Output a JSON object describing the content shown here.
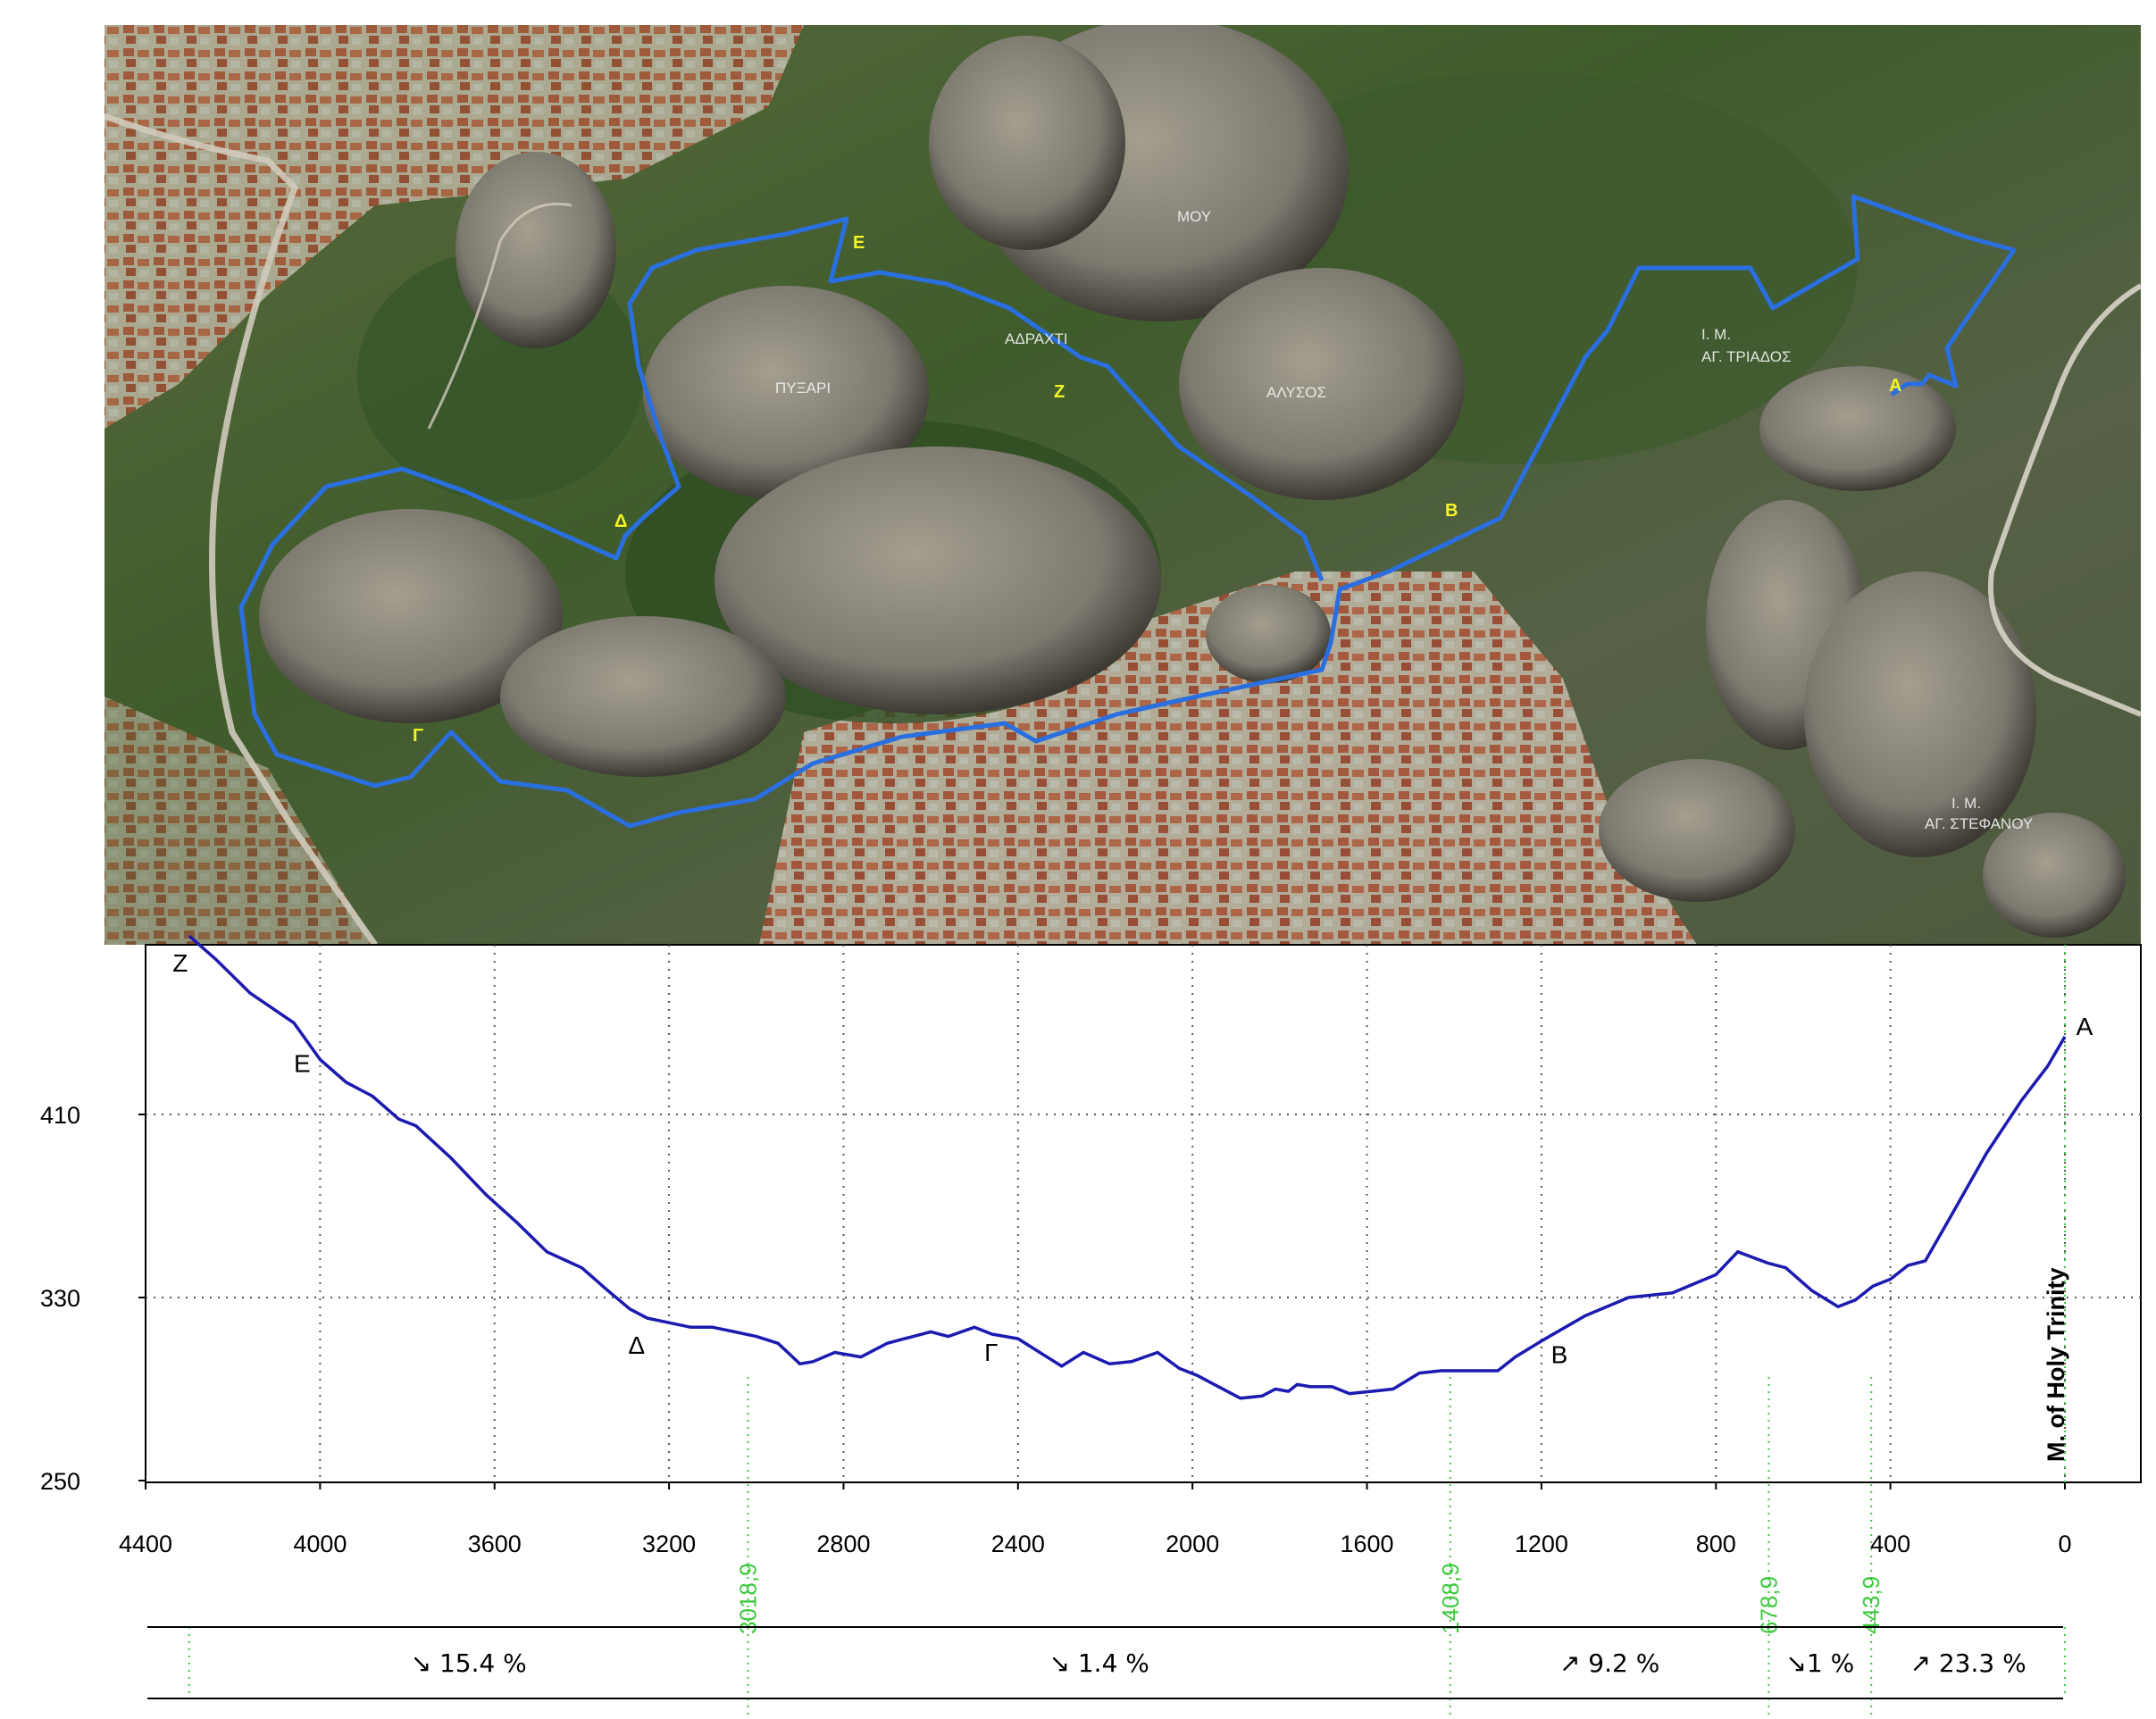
{
  "map": {
    "labels": [
      "ΠΥΞΑΡΙ",
      "ΑΔΡΑΧΤΙ",
      "ΜΟΥ",
      "ΑΛΥΣΟΣ",
      "Ι. Μ.",
      "ΑΓ. ΤΡΙΑΔΟΣ",
      "Ι. Μ.",
      "ΑΓ. ΣΤΕΦΑΝΟΥ"
    ],
    "route_points": [
      "Ε",
      "Ζ",
      "Δ",
      "Β",
      "Γ",
      "Α"
    ]
  },
  "chart_data": {
    "type": "line",
    "title": "",
    "xlabel": "",
    "ylabel": "",
    "x_reversed": true,
    "xlim": [
      0,
      4400
    ],
    "ylim": [
      250,
      490
    ],
    "x_ticks": [
      4400,
      4000,
      3600,
      3200,
      2800,
      2400,
      2000,
      1600,
      1200,
      800,
      400,
      0
    ],
    "y_ticks": [
      250,
      330,
      410
    ],
    "grid": true,
    "series": [
      {
        "color": "#1c1ab0",
        "x": [
          4300,
          4240,
          4160,
          4060,
          4000,
          3940,
          3880,
          3820,
          3780,
          3700,
          3620,
          3550,
          3480,
          3400,
          3340,
          3290,
          3250,
          3200,
          3150,
          3100,
          3050,
          3000,
          2950,
          2900,
          2870,
          2820,
          2760,
          2700,
          2660,
          2600,
          2560,
          2500,
          2460,
          2400,
          2350,
          2300,
          2250,
          2190,
          2140,
          2080,
          2030,
          1990,
          1950,
          1890,
          1840,
          1810,
          1780,
          1760,
          1730,
          1680,
          1640,
          1590,
          1540,
          1480,
          1430,
          1380,
          1300,
          1260,
          1200,
          1100,
          1000,
          900,
          800,
          750,
          680,
          640,
          580,
          520,
          480,
          440,
          400,
          360,
          320,
          260,
          180,
          100,
          40,
          0
        ],
        "y": [
          488,
          478,
          463,
          450,
          434,
          424,
          418,
          408,
          405,
          391,
          375,
          363,
          350,
          343,
          333,
          325,
          321,
          319,
          317,
          317,
          315,
          313,
          310,
          301,
          302,
          306,
          304,
          310,
          312,
          315,
          313,
          317,
          314,
          312,
          306,
          300,
          306,
          301,
          302,
          306,
          299,
          296,
          292,
          286,
          287,
          290,
          289,
          292,
          291,
          291,
          288,
          289,
          290,
          297,
          298,
          298,
          298,
          304,
          311,
          322,
          330,
          332,
          340,
          350,
          345,
          343,
          333,
          326,
          329,
          335,
          338,
          344,
          346,
          366,
          393,
          416,
          431,
          444
        ]
      }
    ],
    "point_labels": [
      {
        "label": "Ζ",
        "x": 4300,
        "y": 488
      },
      {
        "label": "Ε",
        "x": 4000,
        "y": 434
      },
      {
        "label": "Δ",
        "x": 3250,
        "y": 321
      },
      {
        "label": "Γ",
        "x": 2400,
        "y": 312
      },
      {
        "label": "Β",
        "x": 1200,
        "y": 311
      },
      {
        "label": "Α",
        "x": 0,
        "y": 444
      }
    ],
    "vertical_annotation": "M. of Holy Trinity",
    "breakpoints": [
      3018.9,
      1408.9,
      678.9,
      443.9
    ],
    "breakpoint_labels": [
      "3018,9",
      "1408,9",
      "678,9",
      "443,9"
    ],
    "slopes": [
      {
        "text": "↘ 15.4 %",
        "x_from": 4300,
        "x_to": 3018.9
      },
      {
        "text": "↘ 1.4 %",
        "x_from": 3018.9,
        "x_to": 1408.9
      },
      {
        "text": "↗ 9.2 %",
        "x_from": 1408.9,
        "x_to": 678.9
      },
      {
        "text": "↘1 %",
        "x_from": 678.9,
        "x_to": 443.9
      },
      {
        "text": "↗ 23.3 %",
        "x_from": 443.9,
        "x_to": 0
      }
    ]
  }
}
